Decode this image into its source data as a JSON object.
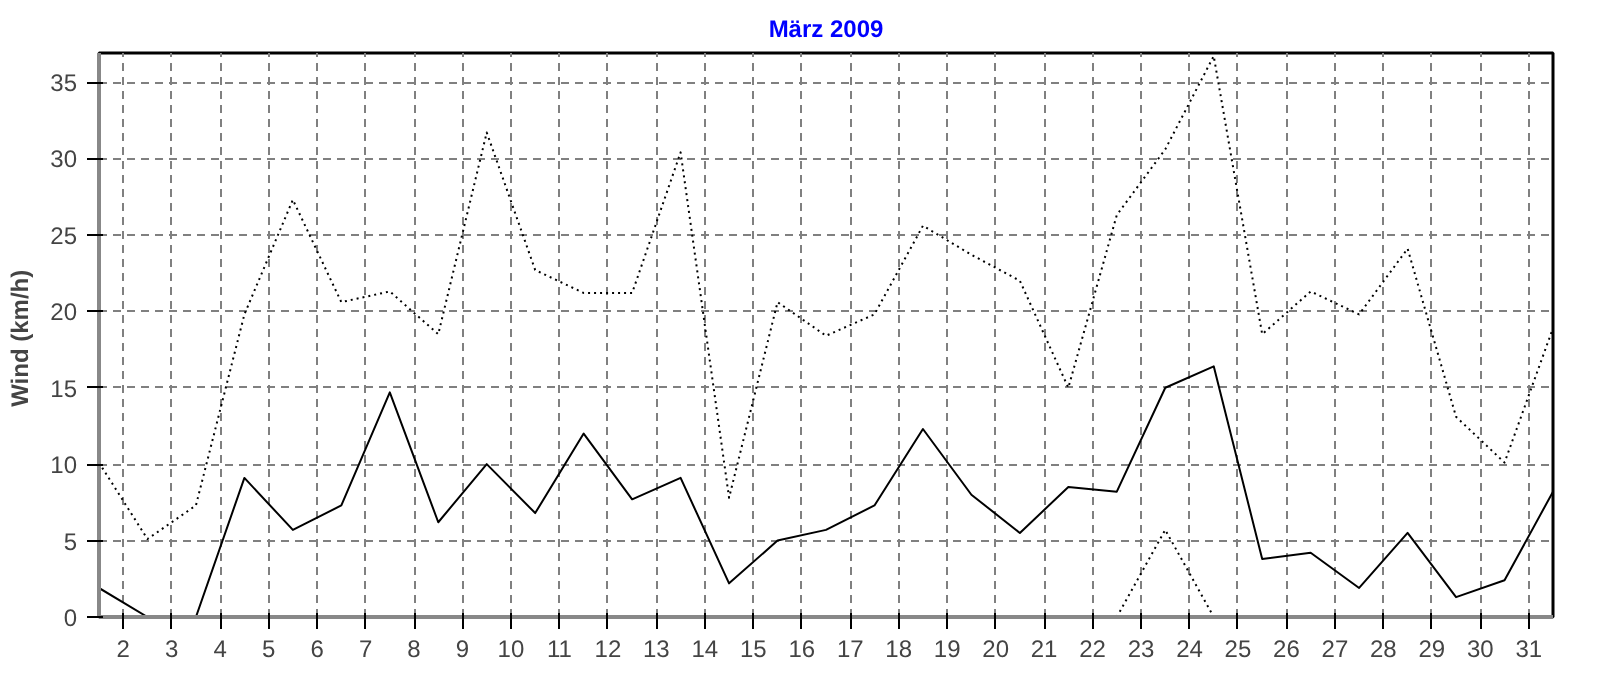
{
  "chart_data": {
    "type": "line",
    "title": "März 2009",
    "ylabel": "Wind  (km/h)",
    "x": [
      1.5,
      2.5,
      3.5,
      4.5,
      5.5,
      6.5,
      7.5,
      8.5,
      9.5,
      10.5,
      11.5,
      12.5,
      13.5,
      14.5,
      15.5,
      16.5,
      17.5,
      18.5,
      19.5,
      20.5,
      21.5,
      22.5,
      23.5,
      24.5,
      25.5,
      26.5,
      27.5,
      28.5,
      29.5,
      30.5,
      31.5
    ],
    "series": [
      {
        "color": "#000000",
        "line_style": "solid",
        "values": [
          1.9,
          0,
          0,
          9.1,
          5.7,
          7.3,
          14.7,
          6.2,
          10.0,
          6.8,
          12.0,
          7.7,
          9.1,
          2.2,
          5.0,
          5.7,
          7.3,
          12.3,
          8.0,
          5.5,
          8.5,
          8.2,
          15.0,
          16.4,
          3.8,
          4.2,
          1.9,
          5.5,
          1.3,
          2.4,
          8.2
        ]
      },
      {
        "color": "#000000",
        "line_style": "dotted",
        "values": [
          10.1,
          5.1,
          7.3,
          19.8,
          27.3,
          20.6,
          21.3,
          18.5,
          31.7,
          22.7,
          21.2,
          21.2,
          30.4,
          7.8,
          20.6,
          18.4,
          19.8,
          25.6,
          23.7,
          22.0,
          15.0,
          26.3,
          30.6,
          36.7,
          18.5,
          21.3,
          19.8,
          24.1,
          13.1,
          10.1,
          18.9
        ]
      },
      {
        "color": "#000000",
        "line_style": "dotted",
        "values": [
          null,
          null,
          null,
          null,
          null,
          null,
          null,
          null,
          null,
          null,
          null,
          null,
          null,
          null,
          null,
          null,
          null,
          null,
          null,
          null,
          null,
          0,
          5.7,
          0,
          null,
          null,
          null,
          null,
          null,
          null,
          null
        ]
      }
    ],
    "xlim": [
      1.5,
      31.5
    ],
    "xticks": [
      2,
      3,
      4,
      5,
      6,
      7,
      8,
      9,
      10,
      11,
      12,
      13,
      14,
      15,
      16,
      17,
      18,
      19,
      20,
      21,
      22,
      23,
      24,
      25,
      26,
      27,
      28,
      29,
      30,
      31
    ],
    "ylim": [
      0,
      36.9
    ],
    "yticks": [
      0,
      5,
      10,
      15,
      20,
      25,
      30,
      35
    ],
    "grid": true,
    "marker": "none"
  }
}
